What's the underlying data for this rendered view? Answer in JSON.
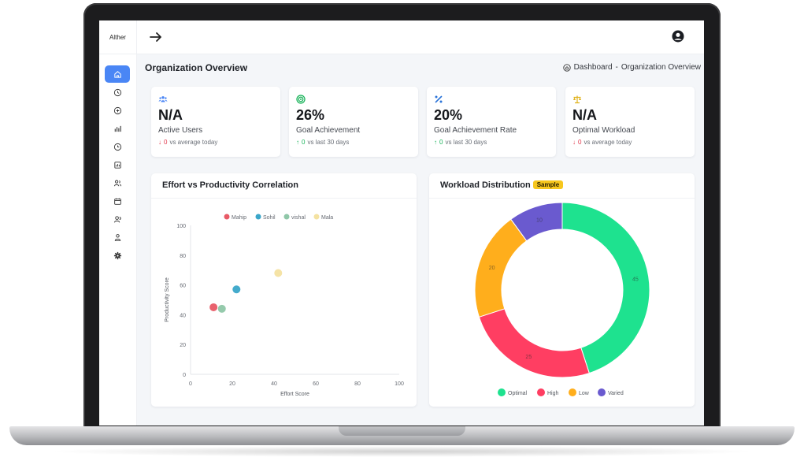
{
  "app": {
    "brand": "Alther"
  },
  "page": {
    "title": "Organization Overview"
  },
  "breadcrumb": {
    "home": "Dashboard",
    "separator": "-",
    "current": "Organization Overview"
  },
  "sidebar": {
    "items": [
      {
        "name": "home",
        "icon": "home-icon",
        "active": true
      },
      {
        "name": "clock",
        "icon": "clock-icon"
      },
      {
        "name": "add",
        "icon": "plus-circle-icon"
      },
      {
        "name": "stats",
        "icon": "bar-chart-icon"
      },
      {
        "name": "history",
        "icon": "history-icon"
      },
      {
        "name": "reports",
        "icon": "report-icon"
      },
      {
        "name": "users",
        "icon": "users-icon"
      },
      {
        "name": "calendar",
        "icon": "calendar-icon"
      },
      {
        "name": "team",
        "icon": "team-icon"
      },
      {
        "name": "people",
        "icon": "people-icon"
      },
      {
        "name": "settings",
        "icon": "gear-icon"
      }
    ]
  },
  "stats": [
    {
      "icon": "users-icon",
      "icon_color": "#4a86f5",
      "value": "N/A",
      "label": "Active Users",
      "trend_dir": "down",
      "trend_arrow": "↓",
      "trend_value": "0",
      "trend_text": "vs average today"
    },
    {
      "icon": "target-icon",
      "icon_color": "#19b35a",
      "value": "26%",
      "label": "Goal Achievement",
      "trend_dir": "up",
      "trend_arrow": "↑",
      "trend_value": "0",
      "trend_text": "vs last 30 days"
    },
    {
      "icon": "percent-icon",
      "icon_color": "#2a73d8",
      "value": "20%",
      "label": "Goal Achievement Rate",
      "trend_dir": "up",
      "trend_arrow": "↑",
      "trend_value": "0",
      "trend_text": "vs last 30 days"
    },
    {
      "icon": "scale-icon",
      "icon_color": "#e0b21b",
      "value": "N/A",
      "label": "Optimal Workload",
      "trend_dir": "down",
      "trend_arrow": "↓",
      "trend_value": "0",
      "trend_text": "vs average today"
    }
  ],
  "panels": {
    "scatter_title": "Effort vs Productivity Correlation",
    "donut_title": "Workload Distribution",
    "donut_badge": "Sample"
  },
  "chart_data": [
    {
      "type": "scatter",
      "title": "Effort vs Productivity Correlation",
      "xlabel": "Effort Score",
      "ylabel": "Productivity Score",
      "xlim": [
        0,
        100
      ],
      "ylim": [
        0,
        100
      ],
      "xticks": [
        0,
        20,
        40,
        60,
        80,
        100
      ],
      "yticks": [
        0,
        20,
        40,
        60,
        80,
        100
      ],
      "grid": false,
      "legend_position": "top",
      "series": [
        {
          "name": "Mahip",
          "color": "#e85a66",
          "x": [
            11
          ],
          "y": [
            45
          ]
        },
        {
          "name": "Sohil",
          "color": "#3aa6c9",
          "x": [
            22
          ],
          "y": [
            57
          ]
        },
        {
          "name": "vishal",
          "color": "#8fc7a8",
          "x": [
            15
          ],
          "y": [
            44
          ]
        },
        {
          "name": "Mala",
          "color": "#f4e2a1",
          "x": [
            42
          ],
          "y": [
            68
          ]
        }
      ]
    },
    {
      "type": "pie",
      "variant": "donut",
      "title": "Workload Distribution",
      "legend_position": "bottom",
      "slices": [
        {
          "label": "Optimal",
          "value": 45,
          "color": "#1ee28f"
        },
        {
          "label": "High",
          "value": 25,
          "color": "#ff3e62"
        },
        {
          "label": "Low",
          "value": 20,
          "color": "#ffae1c"
        },
        {
          "label": "Varied",
          "value": 10,
          "color": "#6a5acf"
        }
      ]
    }
  ]
}
